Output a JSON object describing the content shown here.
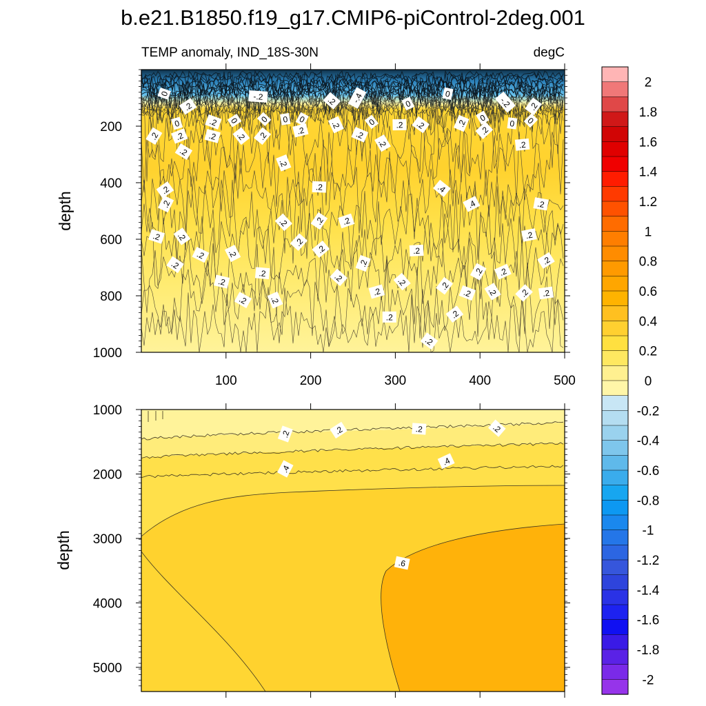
{
  "chart_data": [
    {
      "type": "heatmap",
      "title": "b.e21.B1850.f19_g17.CMIP6-piControl-2deg.001",
      "left_subtitle": "TEMP anomaly, IND_18S-30N",
      "right_subtitle": "degC",
      "xlabel": "",
      "ylabel": "depth",
      "xlim": [
        0,
        500
      ],
      "ylim": [
        1000,
        0
      ],
      "x_ticks": [
        100,
        200,
        300,
        400,
        500
      ],
      "y_ticks": [
        200,
        400,
        600,
        800,
        1000
      ],
      "depth_bands": [
        {
          "from_depth": 0,
          "to_depth": 150,
          "value": -0.6
        },
        {
          "from_depth": 150,
          "to_depth": 450,
          "value": 0.4
        },
        {
          "from_depth": 450,
          "to_depth": 750,
          "value": 0.3
        },
        {
          "from_depth": 750,
          "to_depth": 1000,
          "value": 0.15
        }
      ],
      "contour_labels": [
        {
          "x": 27,
          "depth": 85,
          "text": "0"
        },
        {
          "x": 55,
          "depth": 130,
          "text": ".2"
        },
        {
          "x": 138,
          "depth": 95,
          "text": "-.2"
        },
        {
          "x": 225,
          "depth": 110,
          "text": ".2"
        },
        {
          "x": 255,
          "depth": 100,
          "text": "-.4"
        },
        {
          "x": 315,
          "depth": 120,
          "text": "0"
        },
        {
          "x": 362,
          "depth": 85,
          "text": "0"
        },
        {
          "x": 430,
          "depth": 115,
          "text": "-.2"
        },
        {
          "x": 463,
          "depth": 130,
          "text": ".2"
        },
        {
          "x": 42,
          "depth": 190,
          "text": "0"
        },
        {
          "x": 85,
          "depth": 185,
          "text": ".2"
        },
        {
          "x": 110,
          "depth": 180,
          "text": "0"
        },
        {
          "x": 145,
          "depth": 175,
          "text": "0"
        },
        {
          "x": 170,
          "depth": 175,
          "text": "0"
        },
        {
          "x": 190,
          "depth": 175,
          "text": "0"
        },
        {
          "x": 230,
          "depth": 195,
          "text": ".2"
        },
        {
          "x": 272,
          "depth": 185,
          "text": "0"
        },
        {
          "x": 305,
          "depth": 195,
          "text": ".2"
        },
        {
          "x": 330,
          "depth": 195,
          "text": ".2"
        },
        {
          "x": 378,
          "depth": 190,
          "text": ".2"
        },
        {
          "x": 403,
          "depth": 170,
          "text": "0"
        },
        {
          "x": 438,
          "depth": 190,
          "text": "0"
        },
        {
          "x": 460,
          "depth": 180,
          "text": "0"
        },
        {
          "x": 15,
          "depth": 235,
          "text": ".2"
        },
        {
          "x": 45,
          "depth": 235,
          "text": ".2"
        },
        {
          "x": 84,
          "depth": 235,
          "text": ".2"
        },
        {
          "x": 118,
          "depth": 235,
          "text": ".2"
        },
        {
          "x": 143,
          "depth": 235,
          "text": ".2"
        },
        {
          "x": 188,
          "depth": 215,
          "text": ".2"
        },
        {
          "x": 258,
          "depth": 230,
          "text": ".2"
        },
        {
          "x": 285,
          "depth": 260,
          "text": ".2"
        },
        {
          "x": 405,
          "depth": 215,
          "text": ".2"
        },
        {
          "x": 450,
          "depth": 265,
          "text": ".2"
        },
        {
          "x": 50,
          "depth": 290,
          "text": ".2"
        },
        {
          "x": 168,
          "depth": 330,
          "text": ".2"
        },
        {
          "x": 28,
          "depth": 425,
          "text": ".2"
        },
        {
          "x": 210,
          "depth": 415,
          "text": ".2"
        },
        {
          "x": 355,
          "depth": 420,
          "text": ".4"
        },
        {
          "x": 29,
          "depth": 475,
          "text": ".2"
        },
        {
          "x": 390,
          "depth": 475,
          "text": ".4"
        },
        {
          "x": 472,
          "depth": 475,
          "text": ".2"
        },
        {
          "x": 168,
          "depth": 540,
          "text": ".2"
        },
        {
          "x": 210,
          "depth": 535,
          "text": ".2"
        },
        {
          "x": 242,
          "depth": 535,
          "text": ".2"
        },
        {
          "x": 18,
          "depth": 590,
          "text": ".2"
        },
        {
          "x": 48,
          "depth": 590,
          "text": ".2"
        },
        {
          "x": 186,
          "depth": 610,
          "text": ".2"
        },
        {
          "x": 458,
          "depth": 585,
          "text": ".2"
        },
        {
          "x": 70,
          "depth": 655,
          "text": ".2"
        },
        {
          "x": 108,
          "depth": 650,
          "text": ".2"
        },
        {
          "x": 212,
          "depth": 635,
          "text": ".2"
        },
        {
          "x": 325,
          "depth": 640,
          "text": ".2"
        },
        {
          "x": 40,
          "depth": 690,
          "text": ".2"
        },
        {
          "x": 262,
          "depth": 685,
          "text": ".2"
        },
        {
          "x": 478,
          "depth": 675,
          "text": ".2"
        },
        {
          "x": 143,
          "depth": 720,
          "text": ".2"
        },
        {
          "x": 233,
          "depth": 735,
          "text": ".2"
        },
        {
          "x": 398,
          "depth": 715,
          "text": ".2"
        },
        {
          "x": 427,
          "depth": 715,
          "text": ".2"
        },
        {
          "x": 95,
          "depth": 750,
          "text": ".2"
        },
        {
          "x": 308,
          "depth": 750,
          "text": ".2"
        },
        {
          "x": 358,
          "depth": 765,
          "text": ".2"
        },
        {
          "x": 278,
          "depth": 785,
          "text": ".2"
        },
        {
          "x": 385,
          "depth": 790,
          "text": ".2"
        },
        {
          "x": 415,
          "depth": 785,
          "text": ".2"
        },
        {
          "x": 452,
          "depth": 790,
          "text": ".2"
        },
        {
          "x": 478,
          "depth": 790,
          "text": ".2"
        },
        {
          "x": 120,
          "depth": 815,
          "text": ".2"
        },
        {
          "x": 158,
          "depth": 815,
          "text": ".2"
        },
        {
          "x": 370,
          "depth": 865,
          "text": ".2"
        },
        {
          "x": 293,
          "depth": 875,
          "text": ".2"
        },
        {
          "x": 340,
          "depth": 960,
          "text": ".2"
        }
      ]
    },
    {
      "type": "heatmap",
      "title": "",
      "xlabel": "",
      "ylabel": "depth",
      "xlim": [
        0,
        500
      ],
      "ylim": [
        5375,
        1000
      ],
      "y_ticks": [
        1000,
        2000,
        3000,
        4000,
        5000
      ],
      "contour_labels": [
        {
          "x": 170,
          "depth": 1380,
          "text": ".2"
        },
        {
          "x": 233,
          "depth": 1320,
          "text": ".2"
        },
        {
          "x": 328,
          "depth": 1300,
          "text": ".2"
        },
        {
          "x": 420,
          "depth": 1290,
          "text": ".2"
        },
        {
          "x": 170,
          "depth": 1920,
          "text": ".4"
        },
        {
          "x": 360,
          "depth": 1800,
          "text": ".4"
        },
        {
          "x": 308,
          "depth": 3380,
          "text": ".6"
        }
      ]
    }
  ],
  "colorbar": {
    "tick_labels": [
      "2",
      "1.8",
      "1.6",
      "1.4",
      "1.2",
      "1",
      "0.8",
      "0.6",
      "0.4",
      "0.2",
      "0",
      "-0.2",
      "-0.4",
      "-0.6",
      "-0.8",
      "-1",
      "-1.2",
      "-1.4",
      "-1.6",
      "-1.8",
      "-2"
    ],
    "colors": [
      "#ffb5b5",
      "#f07878",
      "#e04848",
      "#d01818",
      "#d10505",
      "#e00000",
      "#f00000",
      "#ff1c00",
      "#ff3a00",
      "#ff5200",
      "#ff6c00",
      "#ff7e00",
      "#ff8c00",
      "#ff9a00",
      "#ffa600",
      "#ffb300",
      "#ffc020",
      "#ffd030",
      "#ffe040",
      "#ffe860",
      "#fff090",
      "#fff6a8",
      "#c8e6f5",
      "#b4ddf1",
      "#9ad2ee",
      "#7ec6ec",
      "#5fb9ea",
      "#3aacec",
      "#17a6f0",
      "#0d98f2",
      "#1a88ee",
      "#2476e8",
      "#2c66e2",
      "#3656dc",
      "#2e44dc",
      "#2a32e6",
      "#1d22f0",
      "#1010f2",
      "#3a1ae6",
      "#5a22e6",
      "#7a2ae8",
      "#9634ea"
    ]
  }
}
